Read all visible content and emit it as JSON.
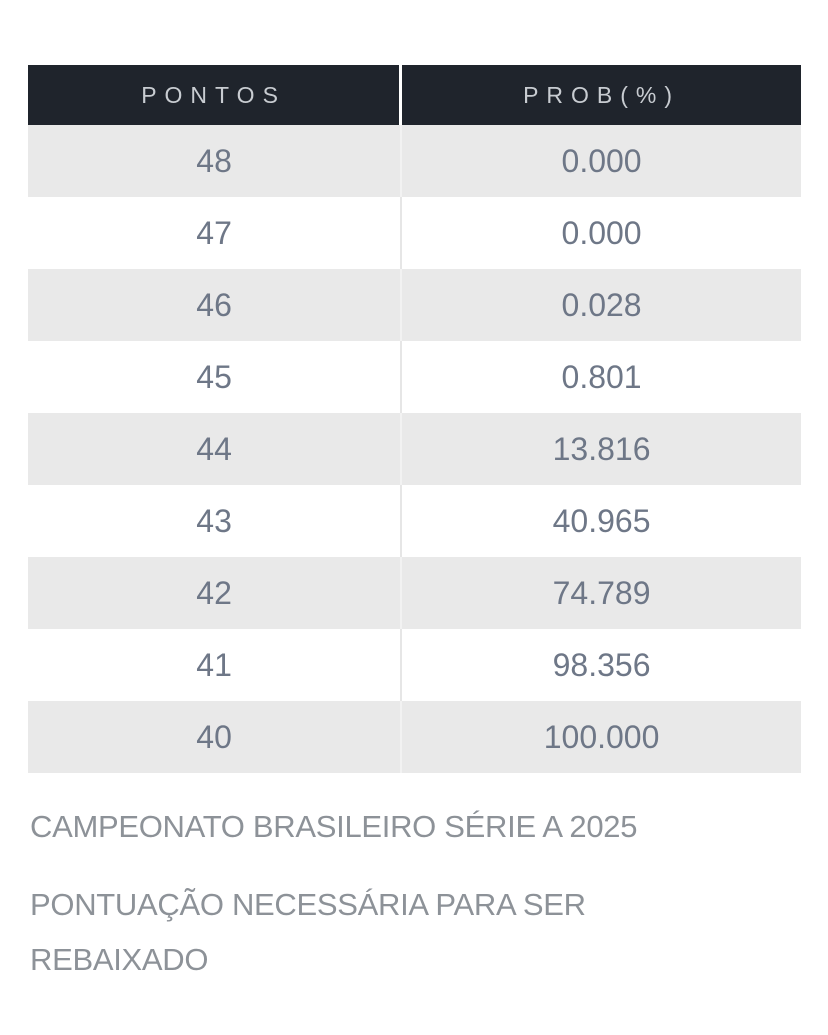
{
  "table": {
    "header": {
      "col1": "PONTOS",
      "col2": "PROB(%)"
    },
    "rows": [
      {
        "pontos": "48",
        "prob": "0.000"
      },
      {
        "pontos": "47",
        "prob": "0.000"
      },
      {
        "pontos": "46",
        "prob": "0.028"
      },
      {
        "pontos": "45",
        "prob": "0.801"
      },
      {
        "pontos": "44",
        "prob": "13.816"
      },
      {
        "pontos": "43",
        "prob": "40.965"
      },
      {
        "pontos": "42",
        "prob": "74.789"
      },
      {
        "pontos": "41",
        "prob": "98.356"
      },
      {
        "pontos": "40",
        "prob": "100.000"
      }
    ],
    "colors": {
      "header_bg": "#1f242c",
      "header_text": "#c8ccd1",
      "row_alt_bg": "#e9e9e9",
      "row_bg": "#ffffff",
      "cell_text": "#6e7787",
      "caption_text": "#8d9298"
    }
  },
  "footer": {
    "line1": "CAMPEONATO BRASILEIRO SÉRIE A 2025",
    "line2": "PONTUAÇÃO NECESSÁRIA PARA SER",
    "line3": "REBAIXADO"
  },
  "chart_data": {
    "type": "table",
    "title": "CAMPEONATO BRASILEIRO SÉRIE A 2025",
    "subtitle": "PONTUAÇÃO NECESSÁRIA PARA SER REBAIXADO",
    "columns": [
      "PONTOS",
      "PROB(%)"
    ],
    "rows": [
      [
        48,
        "0.000"
      ],
      [
        47,
        "0.000"
      ],
      [
        46,
        "0.028"
      ],
      [
        45,
        "0.801"
      ],
      [
        44,
        "13.816"
      ],
      [
        43,
        "40.965"
      ],
      [
        42,
        "74.789"
      ],
      [
        41,
        "98.356"
      ],
      [
        40,
        "100.000"
      ]
    ]
  }
}
